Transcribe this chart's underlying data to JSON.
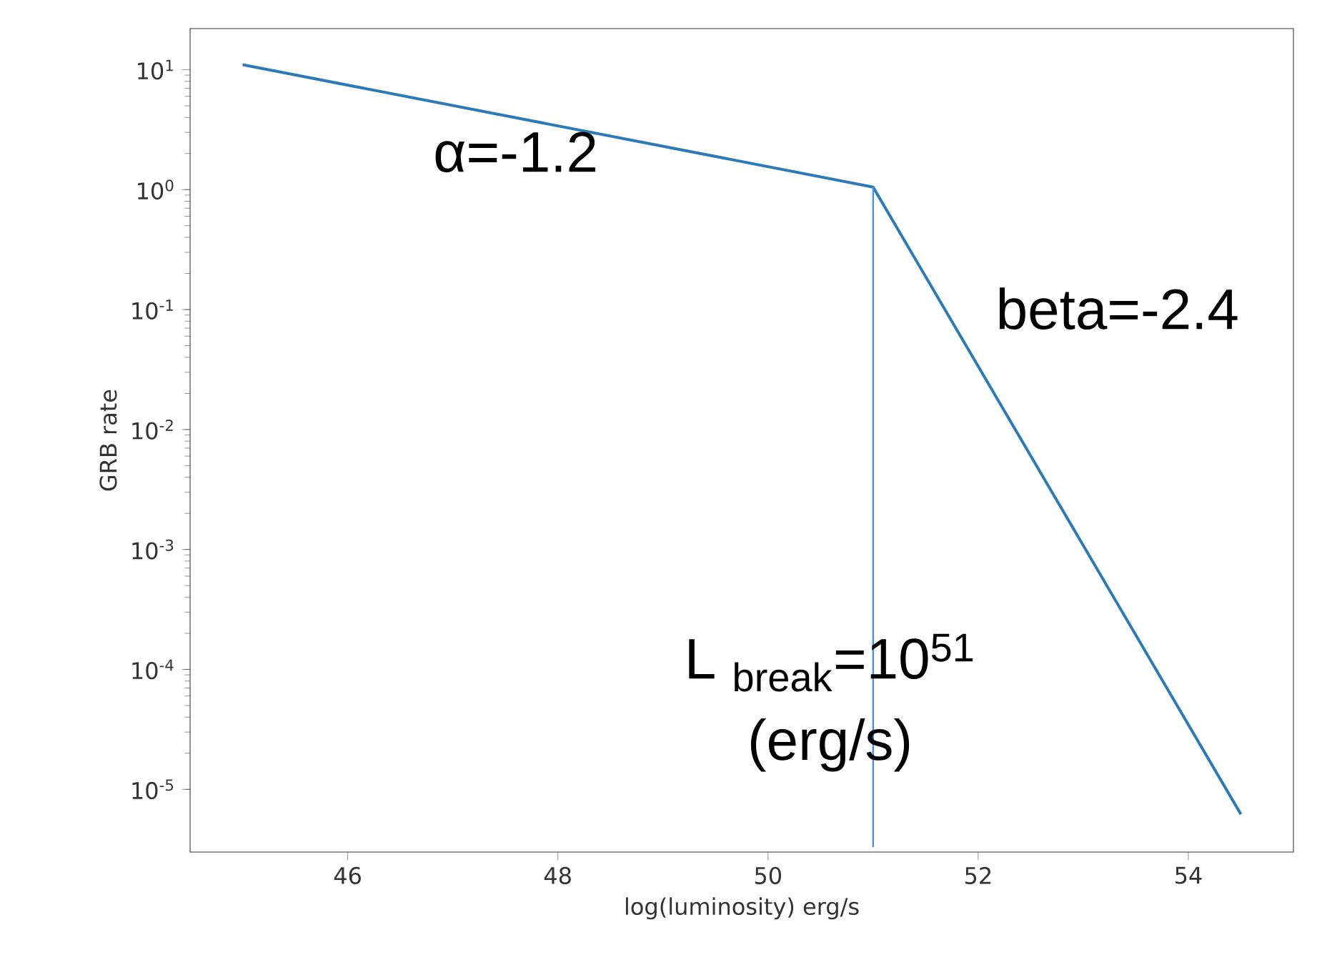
{
  "chart_data": {
    "type": "line",
    "xlabel": "log(luminosity) erg/s",
    "ylabel": "GRB rate",
    "series": [
      {
        "color": "#2c7bb6",
        "x": [
          45,
          51,
          54.5
        ],
        "values": [
          11,
          1.05,
          6.2e-06
        ]
      },
      {
        "color": "#4a90f0",
        "x": [
          51,
          51
        ],
        "values": [
          3.3e-06,
          1.05
        ]
      }
    ],
    "log": "y",
    "xlim": [
      44.5,
      55
    ],
    "ylim": [
      3e-06,
      22
    ],
    "xticks": [
      46,
      48,
      50,
      52,
      54
    ],
    "yticks": [
      {
        "value": 1e-05,
        "label": "10$^{-5}$"
      },
      {
        "value": 0.0001,
        "label": "10$^{-4}$"
      },
      {
        "value": 0.001,
        "label": "10$^{-3}$"
      },
      {
        "value": 0.01,
        "label": "10$^{-2}$"
      },
      {
        "value": 0.1,
        "label": "10$^{-1}$"
      },
      {
        "value": 1,
        "label": "10$^{0}$"
      },
      {
        "value": 10,
        "label": "10$^{1}$"
      }
    ],
    "annotations": [
      "α=-1.2",
      "beta=-2.4",
      "L $_{break}$=10$^{51}$",
      "(erg/s)"
    ]
  }
}
